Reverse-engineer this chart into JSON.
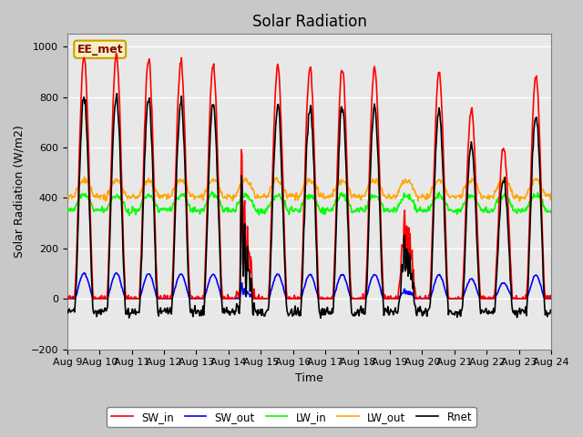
{
  "title": "Solar Radiation",
  "ylabel": "Solar Radiation (W/m2)",
  "xlabel": "Time",
  "ylim": [
    -200,
    1050
  ],
  "yticks": [
    -200,
    0,
    200,
    400,
    600,
    800,
    1000
  ],
  "legend_entries": [
    "SW_in",
    "SW_out",
    "LW_in",
    "LW_out",
    "Rnet"
  ],
  "line_colors": [
    "red",
    "blue",
    "lime",
    "orange",
    "black"
  ],
  "site_label": "EE_met",
  "fig_bg_color": "#c8c8c8",
  "ax_bg_color": "#e8e8e8",
  "grid_color": "#ffffff",
  "title_fontsize": 12,
  "label_fontsize": 9,
  "tick_fontsize": 8
}
